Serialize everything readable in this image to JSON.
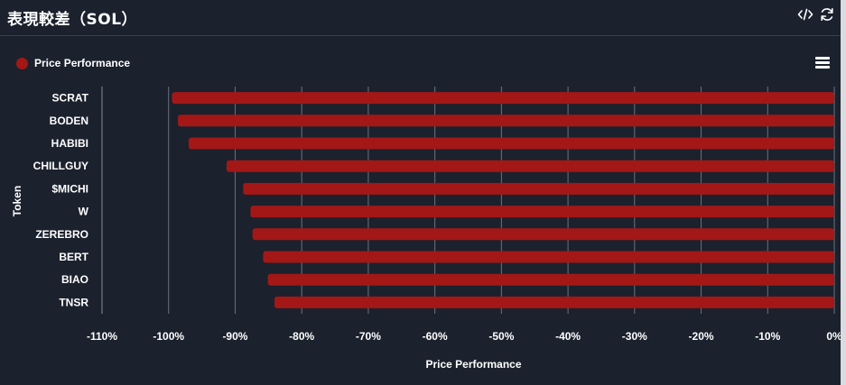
{
  "header": {
    "title": "表現較差（SOL）"
  },
  "icons": {
    "code": "code-icon",
    "refresh": "refresh-icon",
    "menu": "menu-icon"
  },
  "colors": {
    "background": "#1b212d",
    "bar": "#a31717",
    "grid": "#6b7280",
    "text": "#ffffff"
  },
  "chart_data": {
    "type": "bar",
    "orientation": "horizontal",
    "title": "",
    "xlabel": "Price Performance",
    "ylabel": "Token",
    "legend": {
      "position": "top-left",
      "entries": [
        "Price Performance"
      ]
    },
    "grid": true,
    "categories": [
      "SCRAT",
      "BODEN",
      "HABIBI",
      "CHILLGUY",
      "$MICHI",
      "W",
      "ZEREBRO",
      "BERT",
      "BIAO",
      "TNSR"
    ],
    "series": [
      {
        "name": "Price Performance",
        "values": [
          -99.5,
          -98.6,
          -97.0,
          -91.3,
          -88.8,
          -87.7,
          -87.4,
          -85.8,
          -85.1,
          -84.1
        ]
      }
    ],
    "xlim": [
      -110,
      0
    ],
    "xticks": [
      -110,
      -100,
      -90,
      -80,
      -70,
      -60,
      -50,
      -40,
      -30,
      -20,
      -10,
      0
    ],
    "xtick_labels": [
      "-110%",
      "-100%",
      "-90%",
      "-80%",
      "-70%",
      "-60%",
      "-50%",
      "-40%",
      "-30%",
      "-20%",
      "-10%",
      "0%"
    ]
  }
}
